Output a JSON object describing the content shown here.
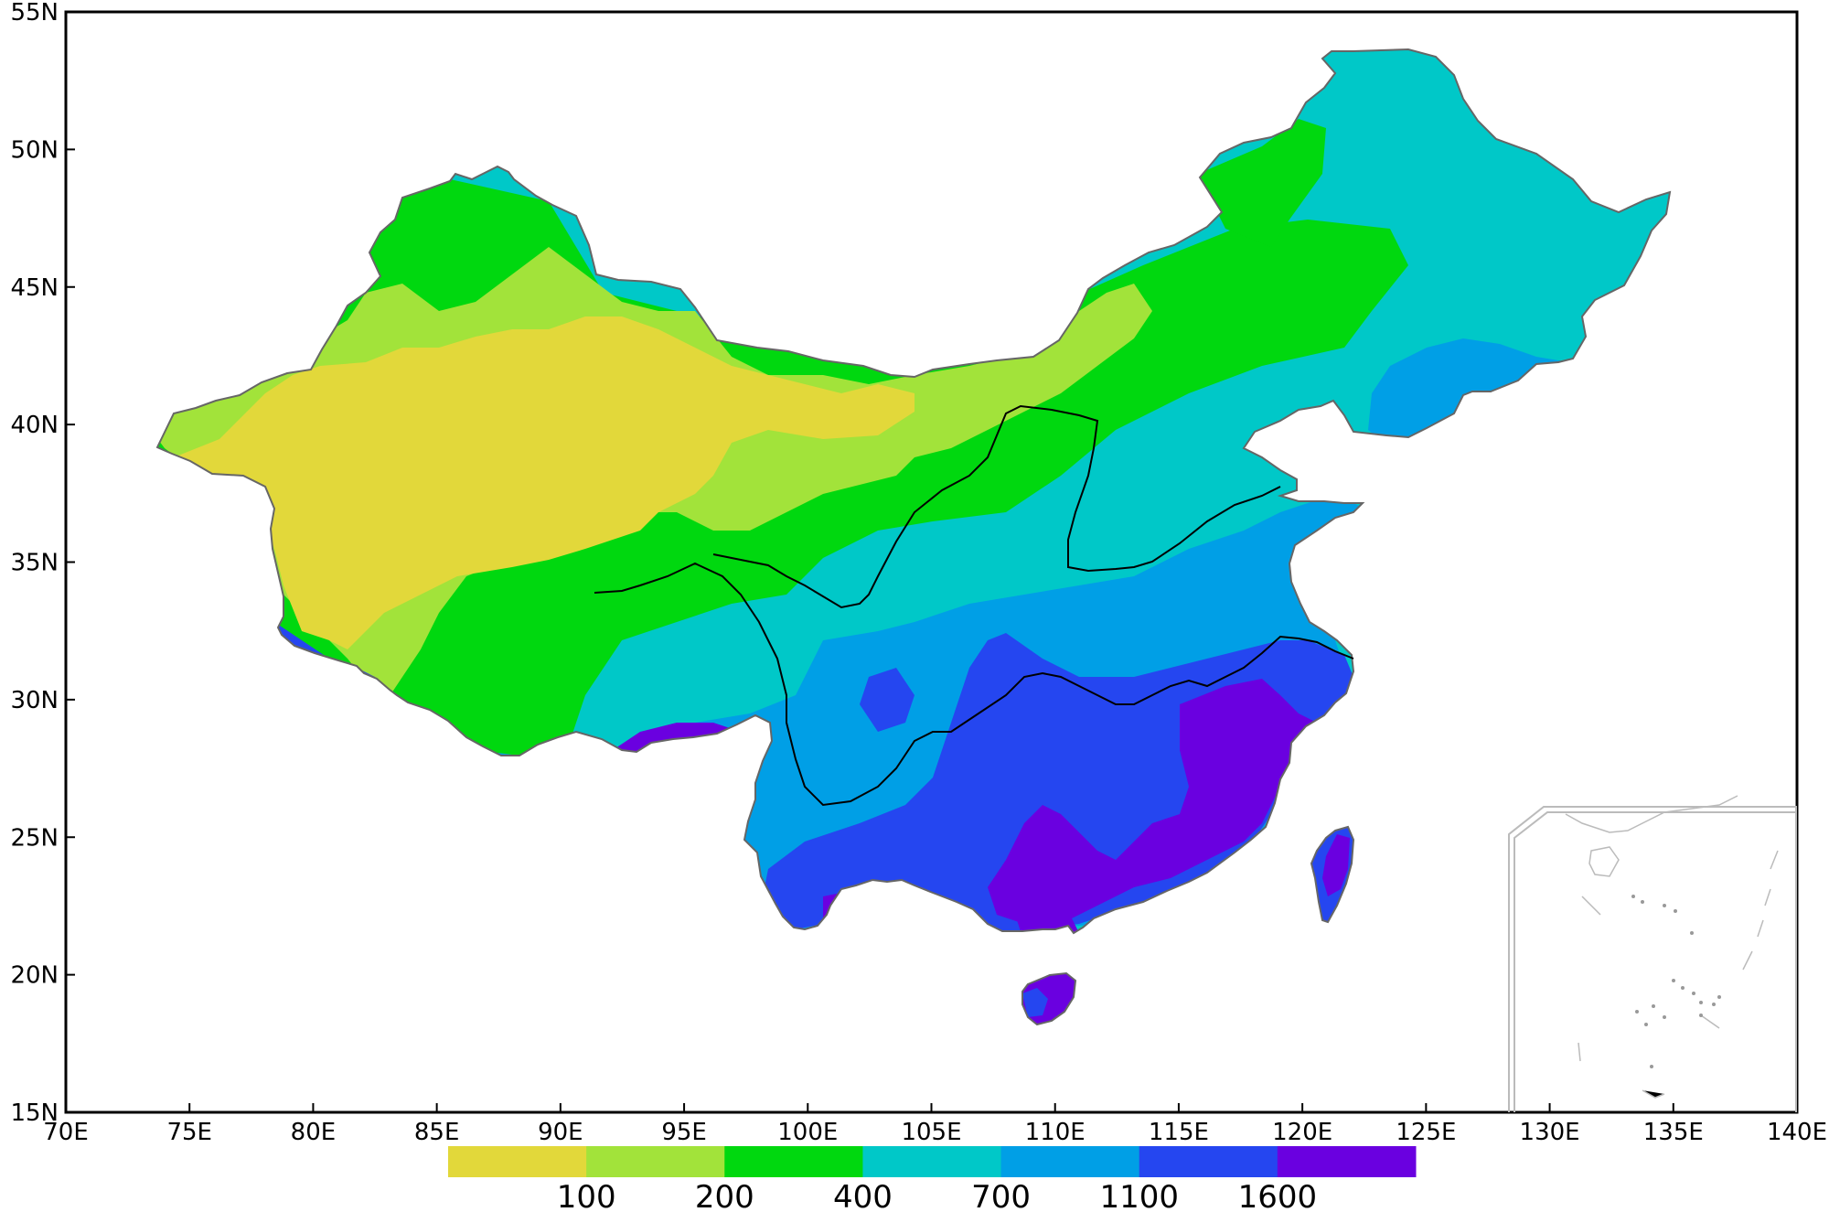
{
  "map": {
    "x_axis": {
      "min": 70,
      "max": 140,
      "step": 5,
      "labels": [
        "70E",
        "75E",
        "80E",
        "85E",
        "90E",
        "95E",
        "100E",
        "105E",
        "110E",
        "115E",
        "120E",
        "125E",
        "130E",
        "135E",
        "140E"
      ]
    },
    "y_axis": {
      "min": 15,
      "max": 55,
      "step": 5,
      "labels": [
        "15N",
        "20N",
        "25N",
        "30N",
        "35N",
        "40N",
        "45N",
        "50N",
        "55N"
      ]
    },
    "colorbar": {
      "colors": [
        "#e2d83a",
        "#a2e33a",
        "#00d80f",
        "#00c8c8",
        "#009fe6",
        "#2546f0",
        "#6a00e0"
      ],
      "labels": [
        "100",
        "200",
        "400",
        "700",
        "1100",
        "1600"
      ]
    },
    "inset": {
      "present": true,
      "position": "bottom-right"
    }
  }
}
